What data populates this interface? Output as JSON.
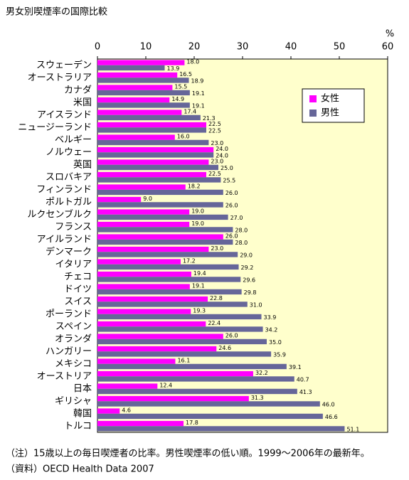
{
  "chart_data": {
    "type": "barh",
    "title": "男女別喫煙率の国際比較",
    "xlabel": "%",
    "categories": [
      "スウェーデン",
      "オーストラリア",
      "カナダ",
      "米国",
      "アイスランド",
      "ニュージーランド",
      "ベルギー",
      "ノルウェー",
      "英国",
      "スロバキア",
      "フィンランド",
      "ポルトガル",
      "ルクセンブルク",
      "フランス",
      "アイルランド",
      "デンマーク",
      "イタリア",
      "チェコ",
      "ドイツ",
      "スイス",
      "ポーランド",
      "スペイン",
      "オランダ",
      "ハンガリー",
      "メキシコ",
      "オーストリア",
      "日本",
      "ギリシャ",
      "韓国",
      "トルコ"
    ],
    "series": [
      {
        "name": "女性",
        "color": "#ff00ff",
        "values": [
          18.0,
          16.5,
          15.5,
          14.9,
          17.4,
          22.5,
          16.0,
          24.0,
          23.0,
          22.5,
          18.2,
          9.0,
          19.0,
          19.0,
          26.0,
          23.0,
          17.2,
          19.4,
          19.1,
          22.8,
          19.3,
          22.4,
          26.0,
          24.6,
          16.1,
          32.2,
          12.4,
          31.3,
          4.6,
          17.8
        ],
        "value_labels": [
          "18.0",
          "16.5",
          "15.5",
          "14.9",
          "17.4",
          "22.5",
          "16.0",
          "24.0",
          "23.0",
          "22.5",
          "18.2",
          "9.0",
          "19.0",
          "19.0",
          "26.0",
          "23.0",
          "17.2",
          "19.4",
          "19.1",
          "22.8",
          "19.3",
          "22.4",
          "26.0",
          "24.6",
          "16.1",
          "32.2",
          "12.4",
          "31.3",
          "4.6",
          "17.8"
        ]
      },
      {
        "name": "男性",
        "color": "#666699",
        "values": [
          13.9,
          18.9,
          19.1,
          19.1,
          21.3,
          22.5,
          23.0,
          24.0,
          25.0,
          25.5,
          26.0,
          26.0,
          27.0,
          28.0,
          28.0,
          29.0,
          29.2,
          29.6,
          29.8,
          31.0,
          33.9,
          34.2,
          35.0,
          35.9,
          39.1,
          40.7,
          41.3,
          46.0,
          46.6,
          51.1
        ],
        "value_labels": [
          "13.9",
          "18.9",
          "19.1",
          "19.1",
          "21.3",
          "22.5",
          "23.0",
          "24.0",
          "25.0",
          "25.5",
          "26.0",
          "26.0",
          "27.0",
          "28.0",
          "28.0",
          "29.0",
          "29.2",
          "29.6",
          "29.8",
          "31.0",
          "33.9",
          "34.2",
          "35.0",
          "35.9",
          "39.1",
          "40.7",
          "41.3",
          "46.0",
          "46.6",
          "51.1"
        ]
      }
    ],
    "xlim": [
      0,
      60
    ],
    "xticks": [
      0,
      10,
      20,
      30,
      40,
      50,
      60
    ],
    "grid": false,
    "legend": "upper right",
    "background": "#ffffcc",
    "notes": [
      "（注）15歳以上の毎日喫煙者の比率。男性喫煙率の低い順。1999～2006年の最新年。",
      "（資料）OECD Health Data 2007"
    ]
  }
}
